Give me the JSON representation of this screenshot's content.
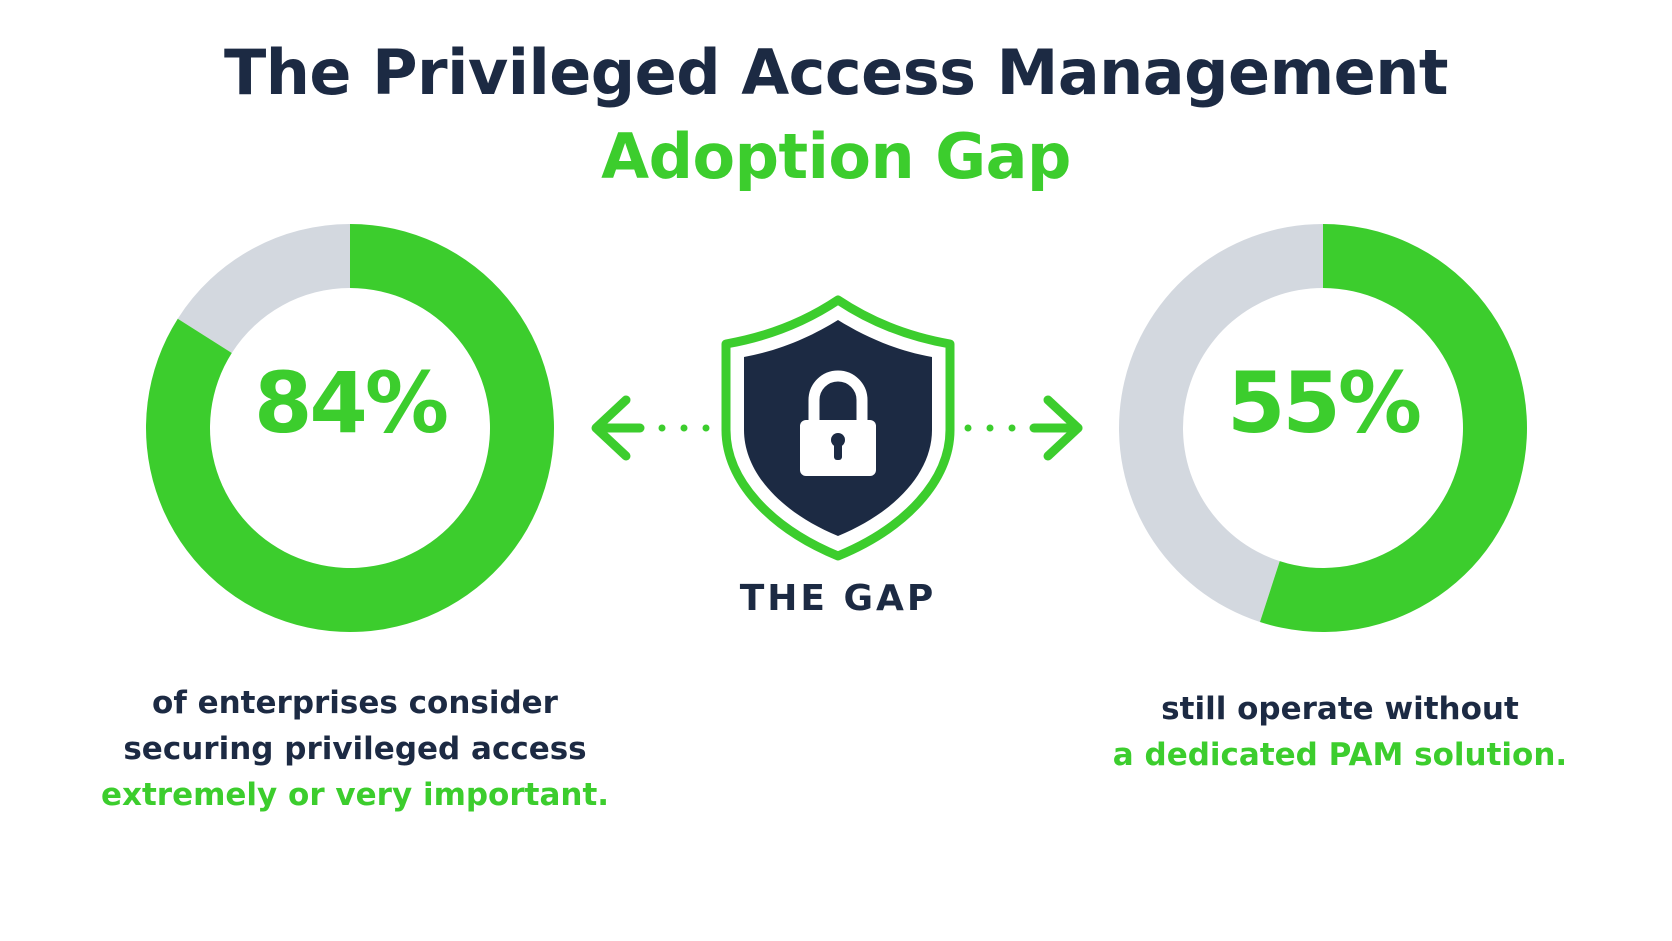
{
  "title": {
    "line1": "The Privileged Access Management",
    "line2": "Adoption Gap"
  },
  "colors": {
    "accent": "#3ccd2d",
    "track": "#d3d8df",
    "dark": "#1c2a43"
  },
  "chart_data": [
    {
      "type": "pie",
      "variant": "donut",
      "values": [
        84,
        16
      ],
      "label": "84%",
      "caption": [
        "of enterprises consider",
        "securing privileged access",
        "extremely or very important."
      ]
    },
    {
      "type": "pie",
      "variant": "donut",
      "values": [
        55,
        45
      ],
      "label": "55%",
      "caption": [
        "still operate without",
        "a dedicated PAM solution."
      ]
    }
  ],
  "center": {
    "label": "THE GAP",
    "icon": "shield-lock-icon"
  }
}
